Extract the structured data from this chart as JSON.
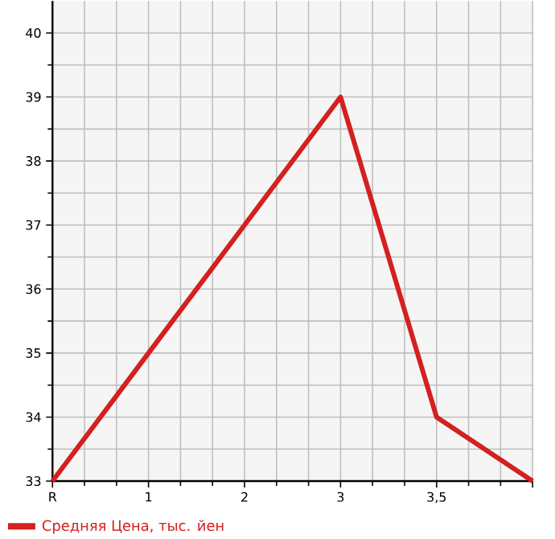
{
  "chart_data": {
    "type": "line",
    "categories": [
      "R",
      "1",
      "2",
      "3",
      "3,5",
      null
    ],
    "series": [
      {
        "name": "Средняя Цена, тыс. йен",
        "color": "#d42020",
        "values": [
          33,
          35,
          37,
          39,
          34,
          33
        ]
      }
    ],
    "ylim": [
      33,
      40.5
    ],
    "yticks": [
      33,
      34,
      35,
      36,
      37,
      38,
      39,
      40
    ],
    "grid": true,
    "legend": "bottom",
    "marker": "none",
    "line_style": "solid"
  }
}
